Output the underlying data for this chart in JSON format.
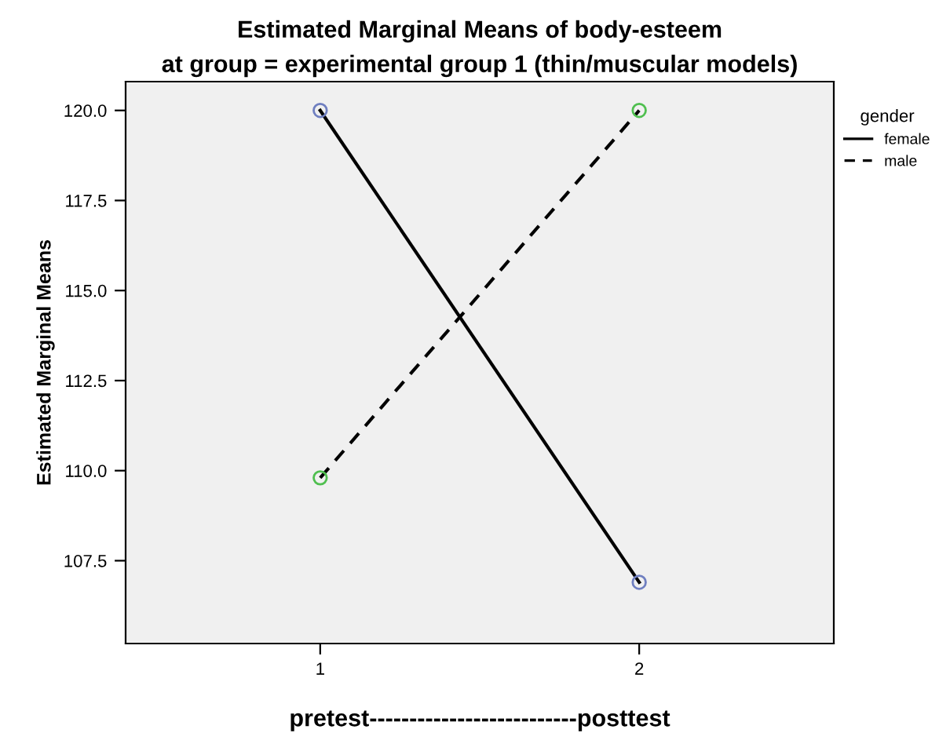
{
  "chart_data": {
    "type": "line",
    "title": "Estimated Marginal Means of body-esteem",
    "subtitle": "at group = experimental group 1 (thin/muscular models)",
    "xlabel": "pretest--------------------------posttest",
    "ylabel": "Estimated Marginal Means",
    "categories": [
      "1",
      "2"
    ],
    "series": [
      {
        "name": "female",
        "color": "#000000",
        "colors": [
          "#6f7fc0",
          "#6f7fc0"
        ],
        "line_style": "solid",
        "values": [
          120.0,
          106.9
        ]
      },
      {
        "name": "male",
        "color": "#000000",
        "colors": [
          "#4fbf4f",
          "#4fbf4f"
        ],
        "line_style": "dashed",
        "values": [
          109.8,
          120.0
        ]
      }
    ],
    "ylim": [
      105.2,
      120.8
    ],
    "yticks": [
      {
        "value": 107.5,
        "label": "107.5"
      },
      {
        "value": 110,
        "label": "110.0"
      },
      {
        "value": 112.5,
        "label": "112.5"
      },
      {
        "value": 115,
        "label": "115.0"
      },
      {
        "value": 117.5,
        "label": "117.5"
      },
      {
        "value": 120,
        "label": "120.0"
      }
    ],
    "marker": "circle",
    "grid": false,
    "legend": "right",
    "legend_title": "gender"
  }
}
